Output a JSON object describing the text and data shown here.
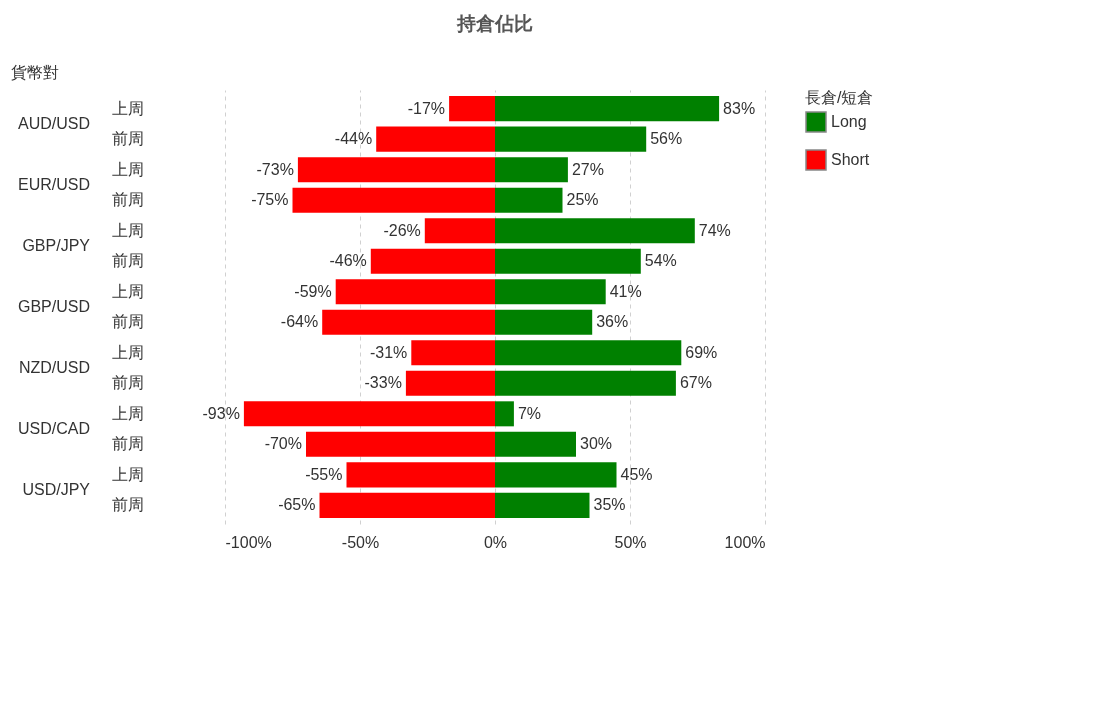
{
  "chart_data": {
    "type": "bar",
    "title": "持倉佔比",
    "ylabel": "貨幣對",
    "legend_title": "長倉/短倉",
    "orientation": "horizontal",
    "stacked": true,
    "categories": [
      "上周",
      "前周",
      "上周",
      "前周",
      "上周",
      "前周",
      "上周",
      "前周",
      "上周",
      "前周",
      "上周",
      "前周",
      "上周",
      "前周"
    ],
    "annotations": [
      "AUD/USD",
      "EUR/USD",
      "GBP/JPY",
      "GBP/USD",
      "NZD/USD",
      "USD/CAD",
      "USD/JPY"
    ],
    "series": [
      {
        "name": "Long",
        "color": "#008000",
        "values": [
          83,
          56,
          27,
          25,
          74,
          54,
          41,
          36,
          69,
          67,
          7,
          30,
          45,
          35
        ],
        "value_labels": [
          "83%",
          "56%",
          "27%",
          "25%",
          "74%",
          "54%",
          "41%",
          "36%",
          "69%",
          "67%",
          "7%",
          "30%",
          "45%",
          "35%"
        ]
      },
      {
        "name": "Short",
        "color": "#ff0000",
        "values": [
          -17,
          -44,
          -73,
          -75,
          -26,
          -46,
          -59,
          -64,
          -31,
          -33,
          -93,
          -70,
          -55,
          -65
        ],
        "value_labels": [
          "-17%",
          "-44%",
          "-73%",
          "-75%",
          "-26%",
          "-46%",
          "-59%",
          "-64%",
          "-31%",
          "-33%",
          "-93%",
          "-70%",
          "-55%",
          "-65%"
        ]
      }
    ],
    "xlim": [
      -100,
      100
    ],
    "xticks": [
      {
        "value": -100,
        "label": "-100%"
      },
      {
        "value": -50,
        "label": "-50%"
      },
      {
        "value": 0,
        "label": "0%"
      },
      {
        "value": 50,
        "label": "50%"
      },
      {
        "value": 100,
        "label": "100%"
      }
    ],
    "grid": "x",
    "legend": "top right"
  }
}
